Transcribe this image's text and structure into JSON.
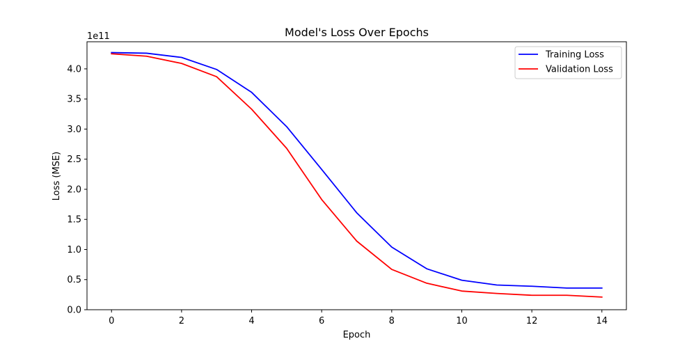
{
  "chart_data": {
    "type": "line",
    "title": "Model's Loss Over Epochs",
    "xlabel": "Epoch",
    "ylabel": "Loss (MSE)",
    "y_offset_label": "1e11",
    "xlim": [
      -0.7,
      14.7
    ],
    "ylim": [
      0,
      4.45
    ],
    "x_ticks": [
      0,
      2,
      4,
      6,
      8,
      10,
      12,
      14
    ],
    "y_ticks": [
      0.0,
      0.5,
      1.0,
      1.5,
      2.0,
      2.5,
      3.0,
      3.5,
      4.0
    ],
    "y_tick_labels": [
      "0.0",
      "0.5",
      "1.0",
      "1.5",
      "2.0",
      "2.5",
      "3.0",
      "3.5",
      "4.0"
    ],
    "grid": false,
    "legend_position": "top-right",
    "x": [
      0,
      1,
      2,
      3,
      4,
      5,
      6,
      7,
      8,
      9,
      10,
      11,
      12,
      13,
      14
    ],
    "series": [
      {
        "name": "Training Loss",
        "color": "#0000ff",
        "values": [
          4.27,
          4.26,
          4.19,
          3.99,
          3.61,
          3.04,
          2.33,
          1.61,
          1.04,
          0.68,
          0.49,
          0.41,
          0.39,
          0.36,
          0.36
        ]
      },
      {
        "name": "Validation Loss",
        "color": "#ff0000",
        "values": [
          4.25,
          4.21,
          4.09,
          3.87,
          3.33,
          2.68,
          1.83,
          1.14,
          0.67,
          0.44,
          0.31,
          0.27,
          0.24,
          0.24,
          0.21
        ]
      }
    ]
  }
}
